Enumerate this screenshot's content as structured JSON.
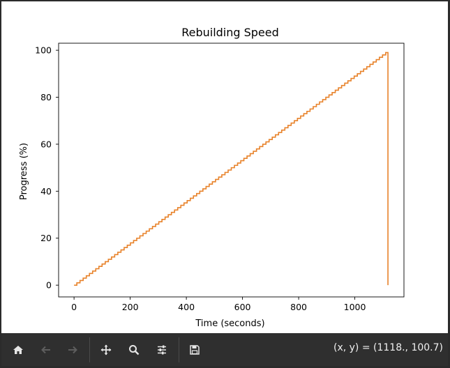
{
  "chart_data": {
    "type": "line",
    "title": "Rebuilding Speed",
    "xlabel": "Time (seconds)",
    "ylabel": "Progress (%)",
    "xlim": [
      -55,
      1175
    ],
    "ylim": [
      -5,
      103
    ],
    "xticks": [
      0,
      200,
      400,
      600,
      800,
      1000
    ],
    "yticks": [
      0,
      20,
      40,
      60,
      80,
      100
    ],
    "grid": false,
    "series": [
      {
        "color": "#e8822a",
        "step_start_x": 10,
        "step_end_x": 1110,
        "step_start_y": 1,
        "step_end_y": 99,
        "x": [
          0,
          10,
          1110,
          1118,
          1118
        ],
        "y": [
          0,
          0,
          99,
          99,
          0
        ]
      }
    ]
  },
  "toolbar": {
    "coords_text": "(x, y) = (1118., 100.7)",
    "buttons": [
      {
        "name": "home-icon",
        "enabled": true
      },
      {
        "name": "back-arrow-icon",
        "enabled": false
      },
      {
        "name": "forward-arrow-icon",
        "enabled": false
      },
      {
        "name": "pan-icon",
        "enabled": true
      },
      {
        "name": "zoom-icon",
        "enabled": true
      },
      {
        "name": "configure-subplots-icon",
        "enabled": true
      },
      {
        "name": "save-icon",
        "enabled": true
      }
    ]
  }
}
